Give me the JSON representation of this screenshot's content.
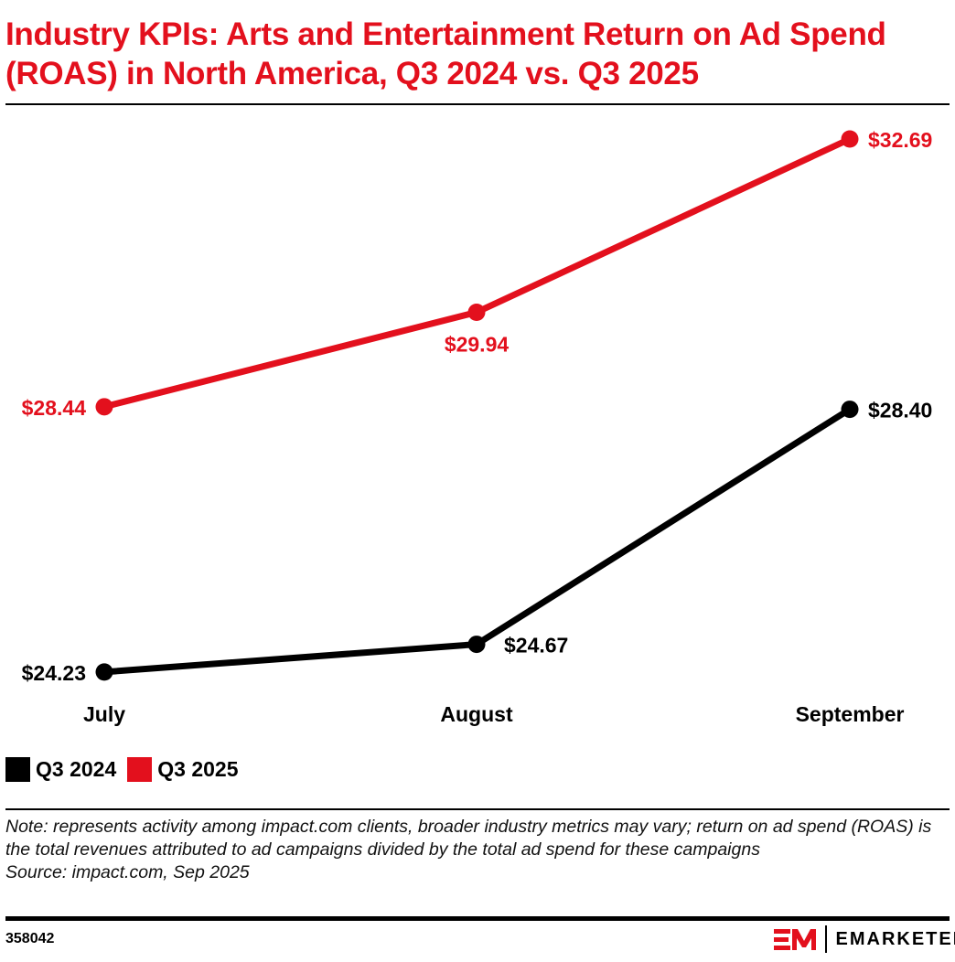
{
  "title": "Industry KPIs: Arts and Entertainment Return on Ad Spend (ROAS) in North America, Q3 2024 vs. Q3 2025",
  "chart_data": {
    "type": "line",
    "title": "Industry KPIs: Arts and Entertainment Return on Ad Spend (ROAS) in North America, Q3 2024 vs. Q3 2025",
    "categories": [
      "July",
      "August",
      "September"
    ],
    "series": [
      {
        "name": "Q3 2024",
        "color": "#000000",
        "values": [
          24.23,
          24.67,
          28.4
        ],
        "labels": [
          "$24.23",
          "$24.67",
          "$28.40"
        ]
      },
      {
        "name": "Q3 2025",
        "color": "#e3101d",
        "values": [
          28.44,
          29.94,
          32.69
        ],
        "labels": [
          "$28.44",
          "$29.94",
          "$32.69"
        ]
      }
    ],
    "grid": false,
    "legend": "bottom-left"
  },
  "note": "Note: represents activity among impact.com clients, broader industry metrics may vary; return on ad spend (ROAS) is the total revenues attributed to ad campaigns divided by the total ad spend for these campaigns",
  "source": "Source: impact.com, Sep 2025",
  "chart_id": "358042",
  "brand": {
    "logo_text": "EMARKETER",
    "accent": "#e3101d"
  }
}
